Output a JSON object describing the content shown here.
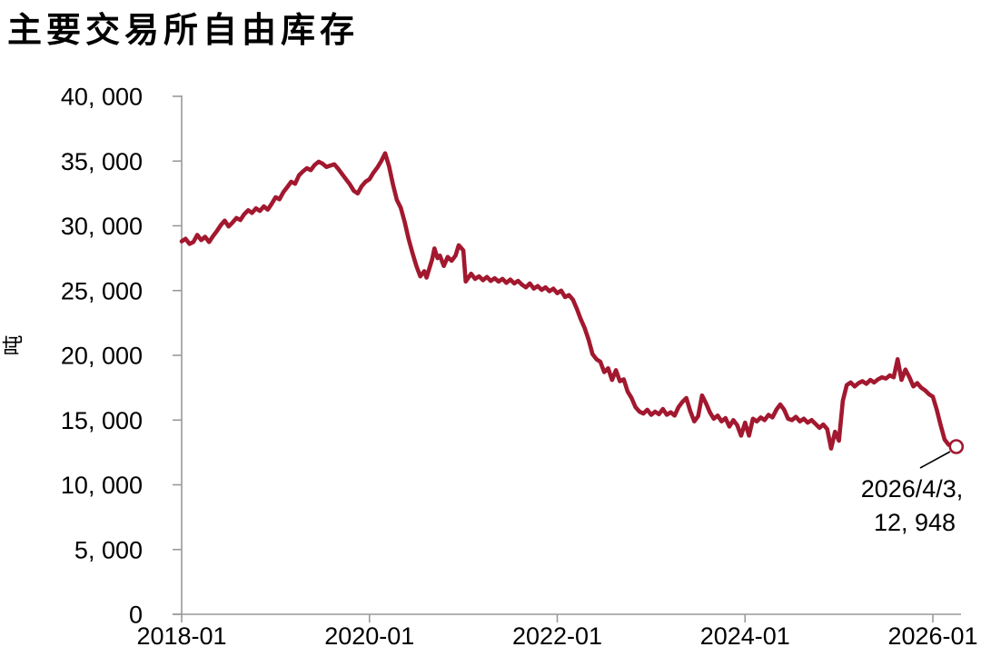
{
  "title": "主要交易所自由库存",
  "y_axis": {
    "unit": "吨",
    "min": 0,
    "max": 40000,
    "ticks": [
      {
        "value": 0,
        "label": "0"
      },
      {
        "value": 5000,
        "label": "5, 000"
      },
      {
        "value": 10000,
        "label": "10, 000"
      },
      {
        "value": 15000,
        "label": "15, 000"
      },
      {
        "value": 20000,
        "label": "20, 000"
      },
      {
        "value": 25000,
        "label": "25, 000"
      },
      {
        "value": 30000,
        "label": "30, 000"
      },
      {
        "value": 35000,
        "label": "35, 000"
      },
      {
        "value": 40000,
        "label": "40, 000"
      }
    ]
  },
  "x_axis": {
    "ticks": [
      {
        "months": 0,
        "label": "2018-01"
      },
      {
        "months": 24,
        "label": "2020-01"
      },
      {
        "months": 48,
        "label": "2022-01"
      },
      {
        "months": 72,
        "label": "2024-01"
      },
      {
        "months": 96,
        "label": "2026-01"
      }
    ]
  },
  "annotation": {
    "line1": "2026/4/3,",
    "line2": "12, 948",
    "date": "2026/4/3",
    "value": 12948
  },
  "colors": {
    "line": "#A2182F",
    "axis": "#999999",
    "text": "#000000"
  },
  "chart_data": {
    "type": "line",
    "title": "主要交易所自由库存",
    "xlabel": "",
    "ylabel": "吨",
    "ylim": [
      0,
      40000
    ],
    "grid": false,
    "legend_position": "none",
    "x_unit": "months since 2018-01",
    "x_tick_labels": [
      "2018-01",
      "2020-01",
      "2022-01",
      "2024-01",
      "2026-01"
    ],
    "last_point": {
      "date": "2026/4/3",
      "value": 12948
    },
    "series": [
      {
        "name": "主要交易所自由库存",
        "points": [
          [
            0,
            28800
          ],
          [
            0.5,
            29000
          ],
          [
            1,
            28600
          ],
          [
            1.5,
            28750
          ],
          [
            2,
            29300
          ],
          [
            2.5,
            28900
          ],
          [
            3,
            29150
          ],
          [
            3.5,
            28750
          ],
          [
            4,
            29200
          ],
          [
            4.5,
            29600
          ],
          [
            5,
            30050
          ],
          [
            5.5,
            30400
          ],
          [
            6,
            29950
          ],
          [
            6.5,
            30250
          ],
          [
            7,
            30600
          ],
          [
            7.5,
            30450
          ],
          [
            8,
            30900
          ],
          [
            8.5,
            31200
          ],
          [
            9,
            31000
          ],
          [
            9.5,
            31350
          ],
          [
            10,
            31150
          ],
          [
            10.5,
            31500
          ],
          [
            11,
            31250
          ],
          [
            11.5,
            31700
          ],
          [
            12,
            32200
          ],
          [
            12.5,
            32050
          ],
          [
            13,
            32600
          ],
          [
            13.5,
            33000
          ],
          [
            14,
            33400
          ],
          [
            14.5,
            33250
          ],
          [
            15,
            33900
          ],
          [
            15.5,
            34200
          ],
          [
            16,
            34450
          ],
          [
            16.5,
            34300
          ],
          [
            17,
            34700
          ],
          [
            17.5,
            34950
          ],
          [
            18,
            34800
          ],
          [
            18.5,
            34550
          ],
          [
            19,
            34650
          ],
          [
            19.5,
            34750
          ],
          [
            20,
            34400
          ],
          [
            20.5,
            34000
          ],
          [
            21,
            33600
          ],
          [
            21.5,
            33200
          ],
          [
            22,
            32700
          ],
          [
            22.5,
            32500
          ],
          [
            23,
            33050
          ],
          [
            23.5,
            33400
          ],
          [
            24,
            33600
          ],
          [
            24.5,
            34100
          ],
          [
            25,
            34500
          ],
          [
            25.5,
            35000
          ],
          [
            26,
            35600
          ],
          [
            26.5,
            34600
          ],
          [
            27,
            33200
          ],
          [
            27.5,
            32000
          ],
          [
            28,
            31400
          ],
          [
            28.5,
            30300
          ],
          [
            29,
            29000
          ],
          [
            29.5,
            27900
          ],
          [
            30,
            26900
          ],
          [
            30.5,
            26100
          ],
          [
            31,
            26500
          ],
          [
            31.3,
            26000
          ],
          [
            31.6,
            26600
          ],
          [
            32,
            27400
          ],
          [
            32.3,
            28250
          ],
          [
            32.7,
            27500
          ],
          [
            33,
            27700
          ],
          [
            33.5,
            26900
          ],
          [
            34,
            27600
          ],
          [
            34.5,
            27300
          ],
          [
            35,
            27700
          ],
          [
            35.4,
            28500
          ],
          [
            36,
            28100
          ],
          [
            36.3,
            25700
          ],
          [
            37,
            26300
          ],
          [
            37.5,
            25900
          ],
          [
            38,
            26100
          ],
          [
            38.5,
            25800
          ],
          [
            39,
            26050
          ],
          [
            39.5,
            25750
          ],
          [
            40,
            25950
          ],
          [
            40.5,
            25700
          ],
          [
            41,
            25900
          ],
          [
            41.5,
            25600
          ],
          [
            42,
            25850
          ],
          [
            42.5,
            25550
          ],
          [
            43,
            25750
          ],
          [
            43.5,
            25450
          ],
          [
            44,
            25250
          ],
          [
            44.5,
            25550
          ],
          [
            45,
            25150
          ],
          [
            45.5,
            25350
          ],
          [
            46,
            25050
          ],
          [
            46.5,
            25250
          ],
          [
            47,
            24950
          ],
          [
            47.5,
            25150
          ],
          [
            48,
            24800
          ],
          [
            48.5,
            25000
          ],
          [
            49,
            24500
          ],
          [
            49.5,
            24650
          ],
          [
            50,
            24300
          ],
          [
            50.5,
            23600
          ],
          [
            51,
            22800
          ],
          [
            51.5,
            22100
          ],
          [
            52,
            21200
          ],
          [
            52.5,
            20100
          ],
          [
            53,
            19700
          ],
          [
            53.5,
            19500
          ],
          [
            54,
            18700
          ],
          [
            54.5,
            19000
          ],
          [
            55,
            18100
          ],
          [
            55.5,
            18850
          ],
          [
            56,
            18000
          ],
          [
            56.5,
            18150
          ],
          [
            57,
            17200
          ],
          [
            57.5,
            16700
          ],
          [
            58,
            16000
          ],
          [
            58.5,
            15650
          ],
          [
            59,
            15500
          ],
          [
            59.5,
            15800
          ],
          [
            60,
            15400
          ],
          [
            60.5,
            15650
          ],
          [
            61,
            15450
          ],
          [
            61.5,
            15850
          ],
          [
            62,
            15400
          ],
          [
            62.5,
            15600
          ],
          [
            63,
            15350
          ],
          [
            63.5,
            16000
          ],
          [
            64,
            16400
          ],
          [
            64.5,
            16700
          ],
          [
            65,
            15700
          ],
          [
            65.5,
            14900
          ],
          [
            66,
            15300
          ],
          [
            66.5,
            16900
          ],
          [
            67,
            16300
          ],
          [
            67.5,
            15600
          ],
          [
            68,
            15100
          ],
          [
            68.5,
            15350
          ],
          [
            69,
            14900
          ],
          [
            69.5,
            15150
          ],
          [
            70,
            14500
          ],
          [
            70.5,
            15000
          ],
          [
            71,
            14600
          ],
          [
            71.5,
            13800
          ],
          [
            72,
            14800
          ],
          [
            72.5,
            13800
          ],
          [
            73,
            15100
          ],
          [
            73.5,
            14900
          ],
          [
            74,
            15200
          ],
          [
            74.5,
            15000
          ],
          [
            75,
            15400
          ],
          [
            75.5,
            15200
          ],
          [
            76,
            15800
          ],
          [
            76.5,
            16200
          ],
          [
            77,
            15800
          ],
          [
            77.5,
            15100
          ],
          [
            78,
            15000
          ],
          [
            78.5,
            15250
          ],
          [
            79,
            14900
          ],
          [
            79.5,
            15100
          ],
          [
            80,
            14800
          ],
          [
            80.5,
            15000
          ],
          [
            81,
            14700
          ],
          [
            81.5,
            14400
          ],
          [
            82,
            14650
          ],
          [
            82.5,
            14300
          ],
          [
            83,
            12800
          ],
          [
            83.5,
            14100
          ],
          [
            84,
            13400
          ],
          [
            84.5,
            16500
          ],
          [
            85,
            17700
          ],
          [
            85.5,
            17900
          ],
          [
            86,
            17600
          ],
          [
            86.5,
            17850
          ],
          [
            87,
            18000
          ],
          [
            87.5,
            17800
          ],
          [
            88,
            18100
          ],
          [
            88.5,
            17900
          ],
          [
            89,
            18150
          ],
          [
            89.5,
            18300
          ],
          [
            90,
            18200
          ],
          [
            90.5,
            18450
          ],
          [
            91,
            18300
          ],
          [
            91.5,
            19700
          ],
          [
            92,
            18100
          ],
          [
            92.5,
            18900
          ],
          [
            93,
            18300
          ],
          [
            93.5,
            17600
          ],
          [
            94,
            17850
          ],
          [
            94.5,
            17500
          ],
          [
            95,
            17300
          ],
          [
            95.5,
            17000
          ],
          [
            96,
            16800
          ],
          [
            96.5,
            15800
          ],
          [
            97,
            14600
          ],
          [
            97.5,
            13500
          ],
          [
            98,
            13100
          ],
          [
            98.5,
            12990
          ],
          [
            99,
            12948
          ]
        ]
      }
    ]
  }
}
